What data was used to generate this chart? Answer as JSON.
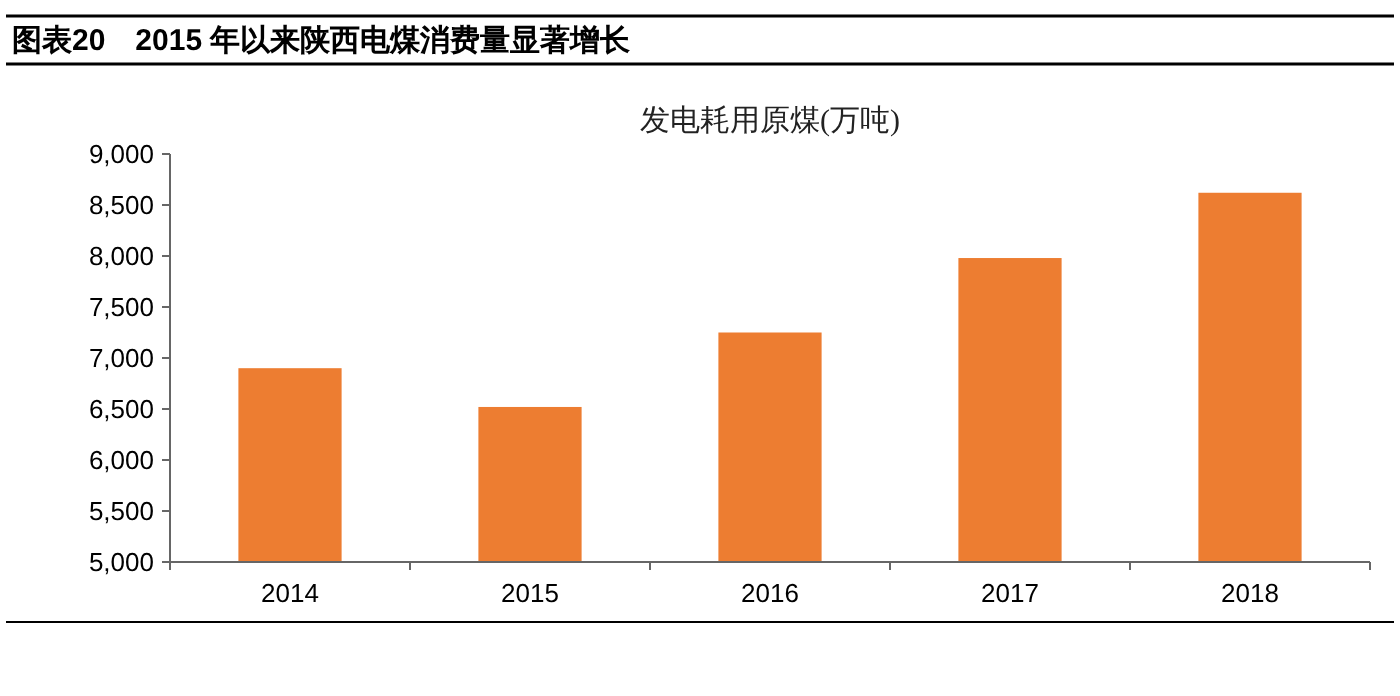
{
  "chart_data": {
    "type": "bar",
    "title": "图表20　2015 年以来陕西电煤消费量显著增长",
    "subtitle": "发电耗用原煤(万吨)",
    "categories": [
      "2014",
      "2015",
      "2016",
      "2017",
      "2018"
    ],
    "values": [
      6900,
      6520,
      7250,
      7980,
      8620
    ],
    "color": "#ed7d31",
    "ylim": [
      5000,
      9000
    ],
    "yticks": [
      {
        "value": 5000,
        "label": "5,000"
      },
      {
        "value": 5500,
        "label": "5,500"
      },
      {
        "value": 6000,
        "label": "6,000"
      },
      {
        "value": 6500,
        "label": "6,500"
      },
      {
        "value": 7000,
        "label": "7,000"
      },
      {
        "value": 7500,
        "label": "7,500"
      },
      {
        "value": 8000,
        "label": "8,000"
      },
      {
        "value": 8500,
        "label": "8,500"
      },
      {
        "value": 9000,
        "label": "9,000"
      }
    ],
    "grid": false
  }
}
